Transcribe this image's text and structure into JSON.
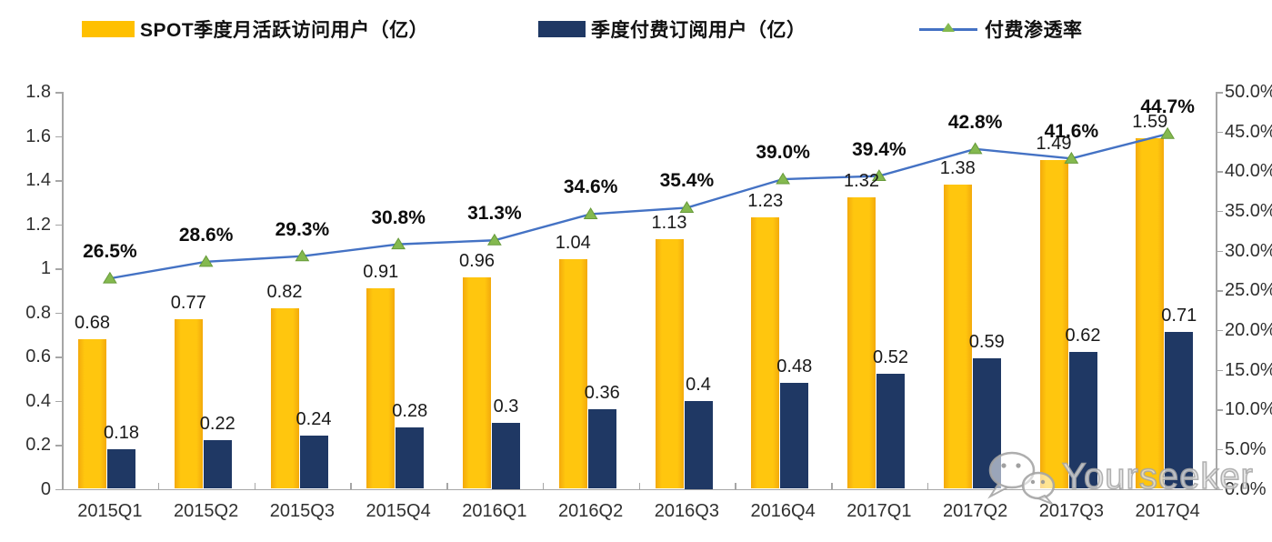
{
  "page": {
    "background": "#ffffff"
  },
  "legend": {
    "items": [
      {
        "label": "SPOT季度月活跃访问用户（亿）",
        "swatch": "bar",
        "color": "#FFC000"
      },
      {
        "label": "季度付费订阅用户（亿）",
        "swatch": "bar",
        "color": "#1F3864"
      },
      {
        "label": "付费渗透率",
        "swatch": "line-triangle",
        "color": "#4472C4",
        "marker_color": "#84B94F"
      }
    ]
  },
  "chart_data": {
    "type": "combo-bar-line",
    "categories": [
      "2015Q1",
      "2015Q2",
      "2015Q3",
      "2015Q4",
      "2016Q1",
      "2016Q2",
      "2016Q3",
      "2016Q4",
      "2017Q1",
      "2017Q2",
      "2017Q3",
      "2017Q4"
    ],
    "series": [
      {
        "name": "SPOT季度月活跃访问用户（亿）",
        "type": "bar",
        "y_axis": "left",
        "color": "#FFC000",
        "values": [
          0.68,
          0.77,
          0.82,
          0.91,
          0.96,
          1.04,
          1.13,
          1.23,
          1.32,
          1.38,
          1.49,
          1.59
        ],
        "data_labels": [
          "0.68",
          "0.77",
          "0.82",
          "0.91",
          "0.96",
          "1.04",
          "1.13",
          "1.23",
          "1.32",
          "1.38",
          "1.49",
          "1.59"
        ]
      },
      {
        "name": "季度付费订阅用户（亿）",
        "type": "bar",
        "y_axis": "left",
        "color": "#1F3864",
        "values": [
          0.18,
          0.22,
          0.24,
          0.28,
          0.3,
          0.36,
          0.4,
          0.48,
          0.52,
          0.59,
          0.62,
          0.71
        ],
        "data_labels": [
          "0.18",
          "0.22",
          "0.24",
          "0.28",
          "0.3",
          "0.36",
          "0.4",
          "0.48",
          "0.52",
          "0.59",
          "0.62",
          "0.71"
        ]
      },
      {
        "name": "付费渗透率",
        "type": "line",
        "y_axis": "right",
        "color": "#4472C4",
        "marker": "triangle",
        "marker_color": "#84B94F",
        "values": [
          26.5,
          28.6,
          29.3,
          30.8,
          31.3,
          34.6,
          35.4,
          39.0,
          39.4,
          42.8,
          41.6,
          44.7
        ],
        "data_labels": [
          "26.5%",
          "28.6%",
          "29.3%",
          "30.8%",
          "31.3%",
          "34.6%",
          "35.4%",
          "39.0%",
          "39.4%",
          "42.8%",
          "41.6%",
          "44.7%"
        ]
      }
    ],
    "left_axis": {
      "min": 0,
      "max": 1.8,
      "step": 0.2,
      "tick_labels": [
        "0",
        "0.2",
        "0.4",
        "0.6",
        "0.8",
        "1",
        "1.2",
        "1.4",
        "1.6",
        "1.8"
      ]
    },
    "right_axis": {
      "min": 0,
      "max": 50,
      "step": 5,
      "tick_labels": [
        "0.0%",
        "5.0%",
        "10.0%",
        "15.0%",
        "20.0%",
        "25.0%",
        "30.0%",
        "35.0%",
        "40.0%",
        "45.0%",
        "50.0%"
      ]
    },
    "grid": false,
    "legend_position": "top"
  },
  "watermark": {
    "text": "Yourseeker",
    "icon": "wechat-icon"
  }
}
